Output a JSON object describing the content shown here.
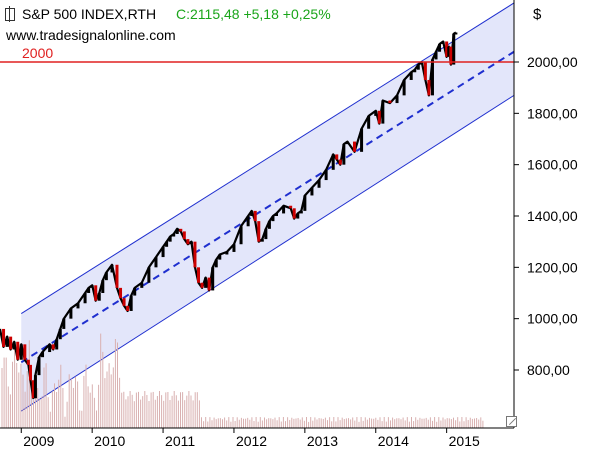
{
  "header": {
    "title": "S&P 500 INDEX,RTH",
    "quote": "C:2115,48 +5,18 +0,25%",
    "website": "www.tradesignalonline.com",
    "level_label": "2000",
    "currency": "$"
  },
  "colors": {
    "price_up": "#000000",
    "price_down": "#cc0000",
    "level_line": "#e02020",
    "channel": "#1f2fcf",
    "channel_fill": "#e3e6fa",
    "volume": "#d9b0b0",
    "quote_text": "#1aa51a"
  },
  "chart_data": {
    "type": "line",
    "title": "S&P 500 INDEX,RTH",
    "xlabel": "",
    "ylabel": "",
    "x_ticks": [
      "2009",
      "2010",
      "2011",
      "2012",
      "2013",
      "2014",
      "2015"
    ],
    "y_ticks": [
      "800,00",
      "1000,00",
      "1200,00",
      "1400,00",
      "1600,00",
      "1800,00",
      "2000,00"
    ],
    "ylim": [
      620,
      2200
    ],
    "xlim": [
      2008.7,
      2015.95
    ],
    "horizontal_line": {
      "label": "2000",
      "value": 2000
    },
    "channel": {
      "upper": [
        [
          2009.0,
          1020
        ],
        [
          2015.95,
          2230
        ]
      ],
      "middle": [
        [
          2009.0,
          830
        ],
        [
          2015.95,
          2040
        ]
      ],
      "lower": [
        [
          2009.0,
          640
        ],
        [
          2015.95,
          1870
        ]
      ]
    },
    "series": [
      {
        "x": [
          2008.7,
          2008.75,
          2008.8,
          2008.85,
          2008.9,
          2008.95,
          2009.0,
          2009.05,
          2009.1,
          2009.13,
          2009.17,
          2009.2,
          2009.25,
          2009.3,
          2009.4,
          2009.45,
          2009.5,
          2009.55,
          2009.6,
          2009.7,
          2009.8,
          2009.9,
          2009.95,
          2010.0,
          2010.05,
          2010.1,
          2010.15,
          2010.2,
          2010.28,
          2010.35,
          2010.4,
          2010.45,
          2010.5,
          2010.55,
          2010.6,
          2010.7,
          2010.8,
          2010.9,
          2011.0,
          2011.05,
          2011.1,
          2011.15,
          2011.2,
          2011.25,
          2011.3,
          2011.35,
          2011.4,
          2011.45,
          2011.5,
          2011.55,
          2011.6,
          2011.65,
          2011.7,
          2011.75,
          2011.8,
          2011.9,
          2012.0,
          2012.1,
          2012.2,
          2012.25,
          2012.3,
          2012.35,
          2012.4,
          2012.45,
          2012.5,
          2012.55,
          2012.6,
          2012.7,
          2012.8,
          2012.85,
          2012.9,
          2012.95,
          2013.0,
          2013.1,
          2013.2,
          2013.3,
          2013.4,
          2013.45,
          2013.5,
          2013.55,
          2013.6,
          2013.7,
          2013.8,
          2013.9,
          2014.0,
          2014.05,
          2014.1,
          2014.2,
          2014.3,
          2014.4,
          2014.5,
          2014.55,
          2014.6,
          2014.65,
          2014.7,
          2014.75,
          2014.8,
          2014.85,
          2014.9,
          2014.95,
          2015.0,
          2015.03,
          2015.06,
          2015.1,
          2015.13
        ],
        "values": [
          960,
          890,
          930,
          880,
          910,
          840,
          900,
          840,
          820,
          760,
          690,
          780,
          850,
          870,
          900,
          880,
          920,
          960,
          1000,
          1040,
          1060,
          1100,
          1120,
          1130,
          1070,
          1100,
          1150,
          1180,
          1210,
          1120,
          1080,
          1050,
          1030,
          1090,
          1120,
          1140,
          1200,
          1240,
          1280,
          1300,
          1320,
          1330,
          1350,
          1340,
          1310,
          1290,
          1300,
          1200,
          1140,
          1120,
          1160,
          1110,
          1200,
          1230,
          1250,
          1260,
          1290,
          1360,
          1400,
          1420,
          1380,
          1300,
          1310,
          1350,
          1380,
          1400,
          1410,
          1440,
          1430,
          1390,
          1410,
          1420,
          1480,
          1510,
          1540,
          1580,
          1640,
          1620,
          1600,
          1680,
          1690,
          1650,
          1740,
          1790,
          1810,
          1760,
          1850,
          1840,
          1870,
          1930,
          1960,
          1970,
          1990,
          2000,
          1930,
          1870,
          2010,
          2040,
          2070,
          2080,
          2020,
          2060,
          1990,
          2110,
          2115
        ]
      }
    ]
  }
}
